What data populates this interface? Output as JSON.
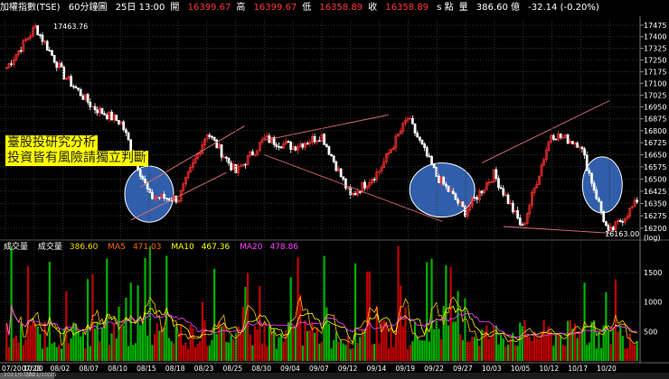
{
  "header": {
    "index_name": "加權指數(TSE)",
    "interval": "60分鐘圖",
    "datetime": "25日 13:00",
    "open_label": "開",
    "open": "16399.67",
    "high_label": "高",
    "high": "16399.67",
    "low_label": "低",
    "low": "16358.89",
    "close_label": "收",
    "close": "16358.89",
    "s_label": "s 點",
    "volume_label": "量",
    "volume": "386.60 億",
    "change": "-32.14 (-0.20%)"
  },
  "annotation": {
    "line1": "臺股投研究分析",
    "line2": "投資皆有風險請獨立判斷"
  },
  "price_pane": {
    "high_marker": "17463.76",
    "low_marker": "16163.00",
    "scale_label": "(log)",
    "y_ticks": [
      "17475",
      "17400",
      "17325",
      "17250",
      "17175",
      "17100",
      "17025",
      "16950",
      "16875",
      "16800",
      "16725",
      "16650",
      "16575",
      "16500",
      "16425",
      "16350",
      "16275",
      "16200"
    ]
  },
  "volume_pane": {
    "title": "成交量",
    "vol_label": "成交量",
    "vol_value": "386.60",
    "ma5_label": "MA5",
    "ma5_value": "471.03",
    "ma10_label": "MA10",
    "ma10_value": "467.36",
    "ma20_label": "MA20",
    "ma20_value": "478.86",
    "y_ticks": [
      "1500",
      "1000",
      "500"
    ]
  },
  "x_axis": {
    "dates": [
      "07/20",
      "07/28",
      "08/02",
      "08/07",
      "08/10",
      "08/15",
      "08/18",
      "08/23",
      "08/25",
      "08/30",
      "09/04",
      "09/07",
      "09/12",
      "09/14",
      "09/19",
      "09/22",
      "09/27",
      "10/03",
      "10/05",
      "10/12",
      "10/17",
      "10/20"
    ],
    "first_label": "07/20 10:00"
  },
  "scroll": {
    "left_label": "2021/07/20",
    "right_label": "2021/10/25"
  },
  "colors": {
    "up": "#ff3030",
    "down": "#ffffff",
    "vol_up": "#c00000",
    "vol_down": "#00b000",
    "ma5": "#ffc000",
    "ma10": "#ffff00",
    "ma20": "#ff40ff",
    "highlight": "#3a6ec8",
    "trendline": "#e07070"
  },
  "chart_data": {
    "type": "candlestick",
    "interval": "60min",
    "ylim": [
      16150,
      17510
    ],
    "log_scale": true,
    "key_points": [
      {
        "date": "07/20",
        "value": 17200
      },
      {
        "date": "07/28",
        "value": 17463.76
      },
      {
        "date": "08/02",
        "value": 17150
      },
      {
        "date": "08/07",
        "value": 16950
      },
      {
        "date": "08/10",
        "value": 16850
      },
      {
        "date": "08/15",
        "value": 16390
      },
      {
        "date": "08/18",
        "value": 16380
      },
      {
        "date": "08/23",
        "value": 16790
      },
      {
        "date": "08/25",
        "value": 16540
      },
      {
        "date": "08/30",
        "value": 16750
      },
      {
        "date": "09/04",
        "value": 16700
      },
      {
        "date": "09/07",
        "value": 16770
      },
      {
        "date": "09/12",
        "value": 16390
      },
      {
        "date": "09/14",
        "value": 16550
      },
      {
        "date": "09/19",
        "value": 16880
      },
      {
        "date": "09/22",
        "value": 16520
      },
      {
        "date": "09/27",
        "value": 16300
      },
      {
        "date": "10/03",
        "value": 16530
      },
      {
        "date": "10/05",
        "value": 16200
      },
      {
        "date": "10/12",
        "value": 16780
      },
      {
        "date": "10/17",
        "value": 16720
      },
      {
        "date": "10/20",
        "value": 16163.0
      },
      {
        "date": "10/25",
        "value": 16358.89
      }
    ],
    "volume_ylim": [
      0,
      1900
    ]
  }
}
